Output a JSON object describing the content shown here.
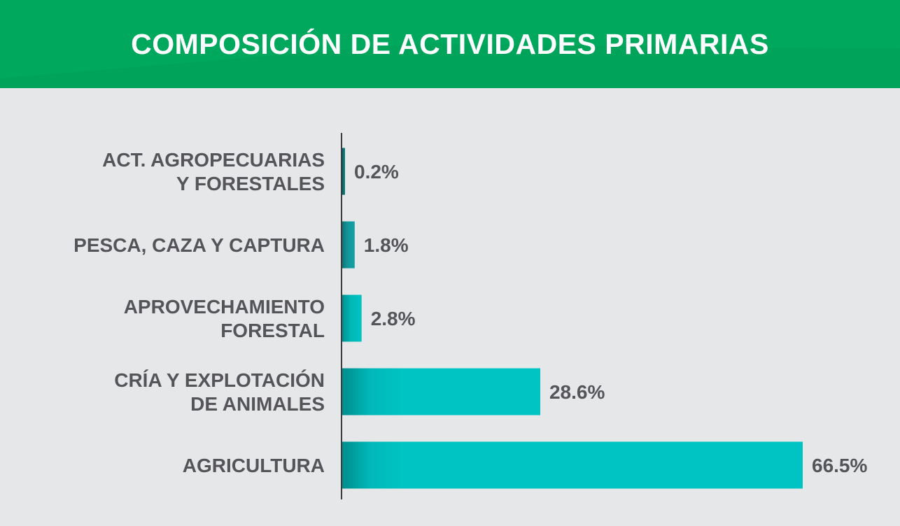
{
  "title": "COMPOSICIÓN DE ACTIVIDADES PRIMARIAS",
  "colors": {
    "header": "#00a85d",
    "background": "#e6e7e9",
    "text": "#555559",
    "bar_dark": "#0b7b7d",
    "bar_mid": "#14a1a4",
    "bar_light": "#00c4c4"
  },
  "chart_data": {
    "type": "bar",
    "orientation": "horizontal",
    "categories": [
      [
        "ACT. AGROPECUARIAS",
        "Y FORESTALES"
      ],
      [
        "PESCA, CAZA Y CAPTURA"
      ],
      [
        "APROVECHAMIENTO",
        "FORESTAL"
      ],
      [
        "CRÍA Y EXPLOTACIÓN",
        "DE ANIMALES"
      ],
      [
        "AGRICULTURA"
      ]
    ],
    "values": [
      0.2,
      1.8,
      2.8,
      28.6,
      66.5
    ],
    "value_labels": [
      "0.2%",
      "1.8%",
      "2.8%",
      "28.6%",
      "66.5%"
    ],
    "bar_colors": [
      "#0b7b7d",
      "#14a1a4",
      "#00c4c4",
      "#00c4c4",
      "#00c4c4"
    ],
    "title": "COMPOSICIÓN DE ACTIVIDADES PRIMARIAS",
    "xlabel": "",
    "ylabel": "",
    "grid": false,
    "legend": "none"
  }
}
